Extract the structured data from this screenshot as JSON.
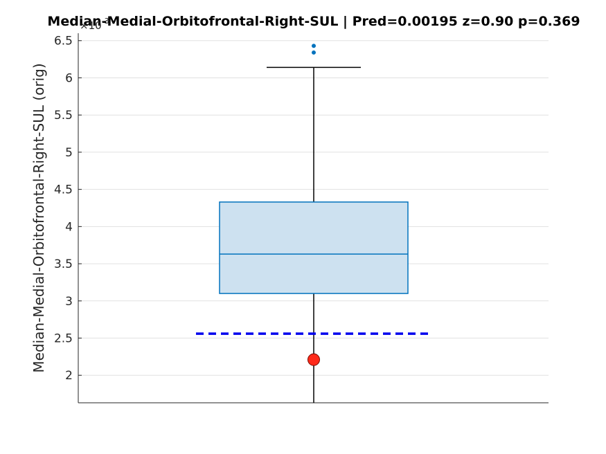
{
  "chart_data": {
    "type": "box",
    "title": "Median-Medial-Orbitofrontal-Right-SUL  |  Pred=0.00195  z=0.90  p=0.369",
    "ylabel": "Median-Medial-Orbitofrontal-Right-SUL (orig)",
    "y_exponent_label": "×10",
    "y_exponent_power": "-3",
    "ylim": [
      1.63,
      6.6
    ],
    "yticks": [
      "2",
      "2.5",
      "3",
      "3.5",
      "4",
      "4.5",
      "5",
      "5.5",
      "6",
      "6.5"
    ],
    "ytick_values": [
      2,
      2.5,
      3,
      3.5,
      4,
      4.5,
      5,
      5.5,
      6,
      6.5
    ],
    "grid": "y",
    "box": {
      "q1": 3.1,
      "median": 3.63,
      "q3": 4.33,
      "whisker_low": 1.63,
      "whisker_high": 6.14
    },
    "outliers": [
      6.34,
      6.43
    ],
    "reference_line": {
      "value": 2.56,
      "style": "dashed",
      "color": "#0000ee"
    },
    "subject_point": {
      "value": 2.21,
      "color": "#ff2a1a"
    },
    "colors": {
      "box_fill": "#cde1f0",
      "box_edge": "#0072bd",
      "whisker": "#000000",
      "outlier": "#0072bd",
      "grid": "#e1e1e1",
      "axis": "#262626"
    }
  }
}
